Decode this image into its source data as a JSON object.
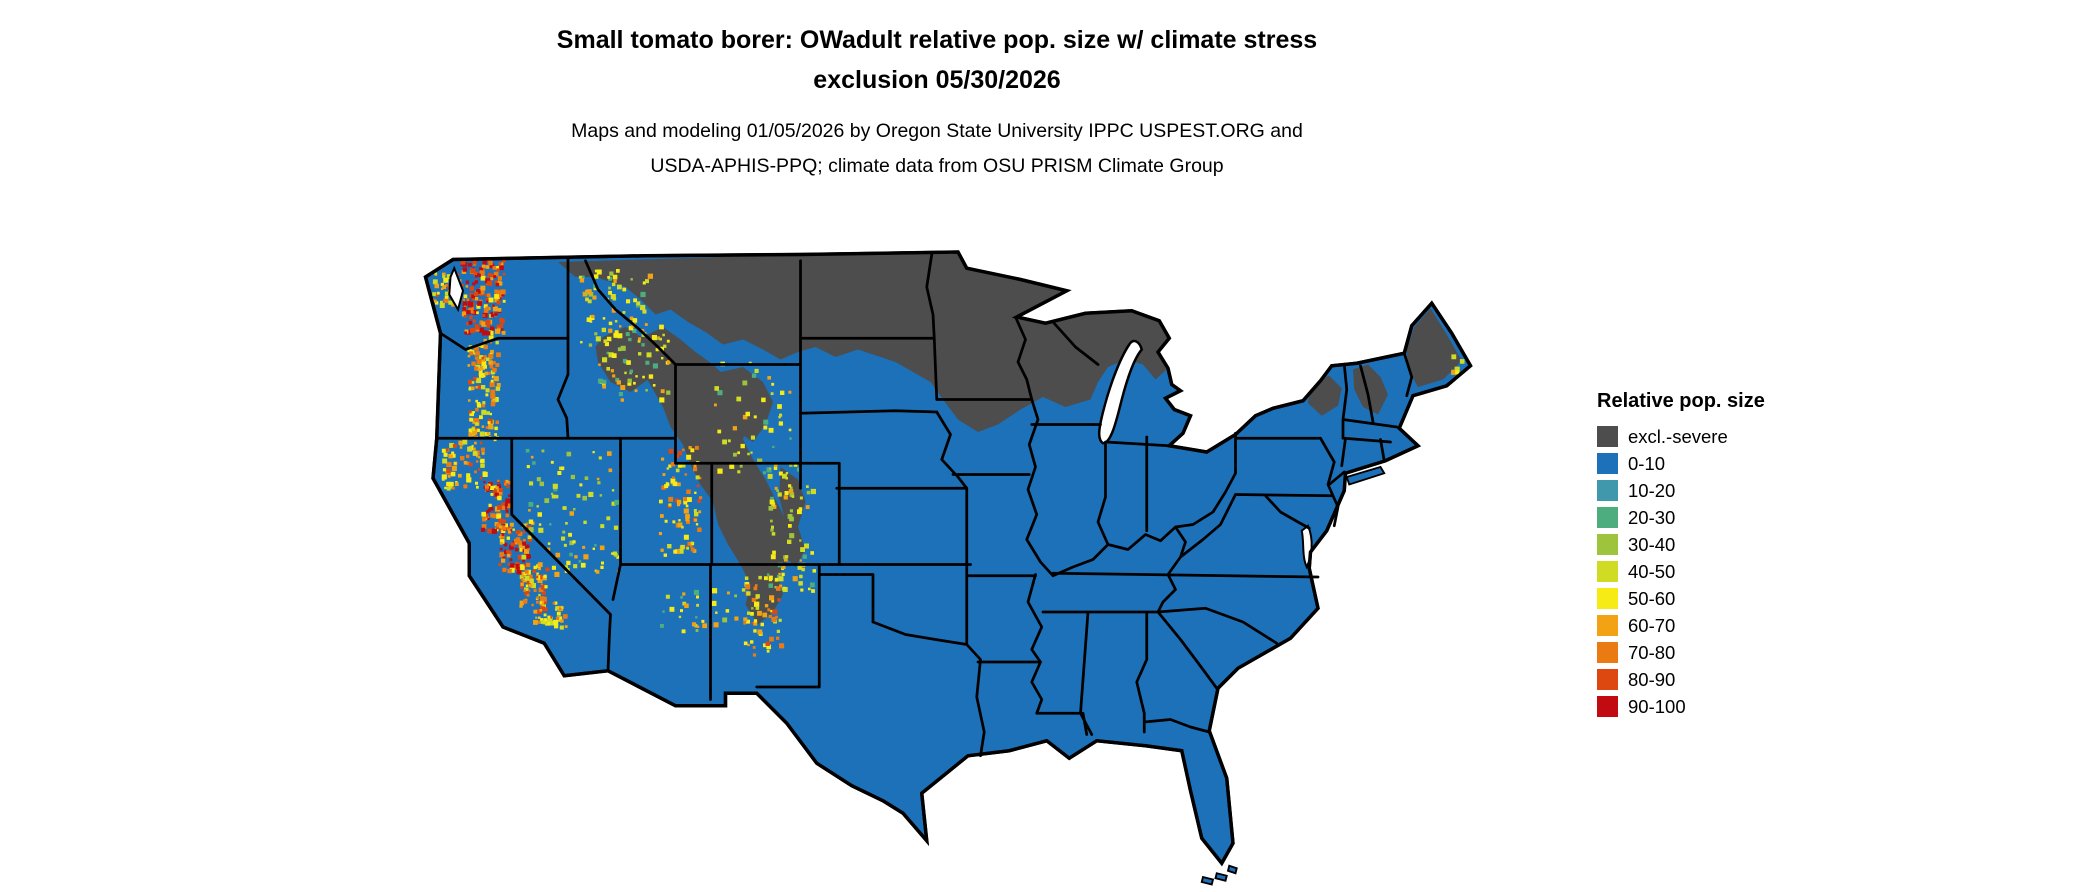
{
  "title": {
    "line1": "Small tomato borer: OWadult relative pop. size w/ climate stress",
    "line2": "exclusion 05/30/2026"
  },
  "subtitle": {
    "line1": "Maps and modeling 01/05/2026 by Oregon State University IPPC USPEST.ORG and",
    "line2": "USDA-APHIS-PPQ; climate data from OSU PRISM Climate Group"
  },
  "legend": {
    "title": "Relative pop. size",
    "entries": [
      {
        "label": "excl.-severe",
        "color": "#4d4d4d"
      },
      {
        "label": "0-10",
        "color": "#1d71b8"
      },
      {
        "label": "10-20",
        "color": "#3f98ab"
      },
      {
        "label": "20-30",
        "color": "#4ead7e"
      },
      {
        "label": "30-40",
        "color": "#9dc43c"
      },
      {
        "label": "40-50",
        "color": "#cfdc23"
      },
      {
        "label": "50-60",
        "color": "#f6eb14"
      },
      {
        "label": "60-70",
        "color": "#f2a213"
      },
      {
        "label": "70-80",
        "color": "#e97b12"
      },
      {
        "label": "80-90",
        "color": "#dc4810"
      },
      {
        "label": "90-100",
        "color": "#c20a11"
      }
    ]
  },
  "map": {
    "region": "Continental United States",
    "background": "#ffffff",
    "border_color": "#000000",
    "base_color": "#1d71b8",
    "base_class": "0-10",
    "severe_exclusion_color": "#4d4d4d",
    "severe_exclusion_areas": [
      "Northern Plains and Upper Midwest (Montana, North Dakota, northern Minnesota, northern Wisconsin, upper Michigan)",
      "Rocky Mountains (central Idaho, western Wyoming, eastern Utah, Colorado, northern New Mexico)",
      "Northern New England (Maine, New Hampshire, Vermont) and Adirondacks"
    ],
    "high_value_speckle_areas": [
      "Cascade Range (Washington, Oregon)",
      "Sierra Nevada (California)",
      "Great Basin ranges (Nevada, Utah)",
      "Rocky Mountain margins (Idaho, Montana, Wyoming, Colorado, New Mexico)"
    ]
  }
}
